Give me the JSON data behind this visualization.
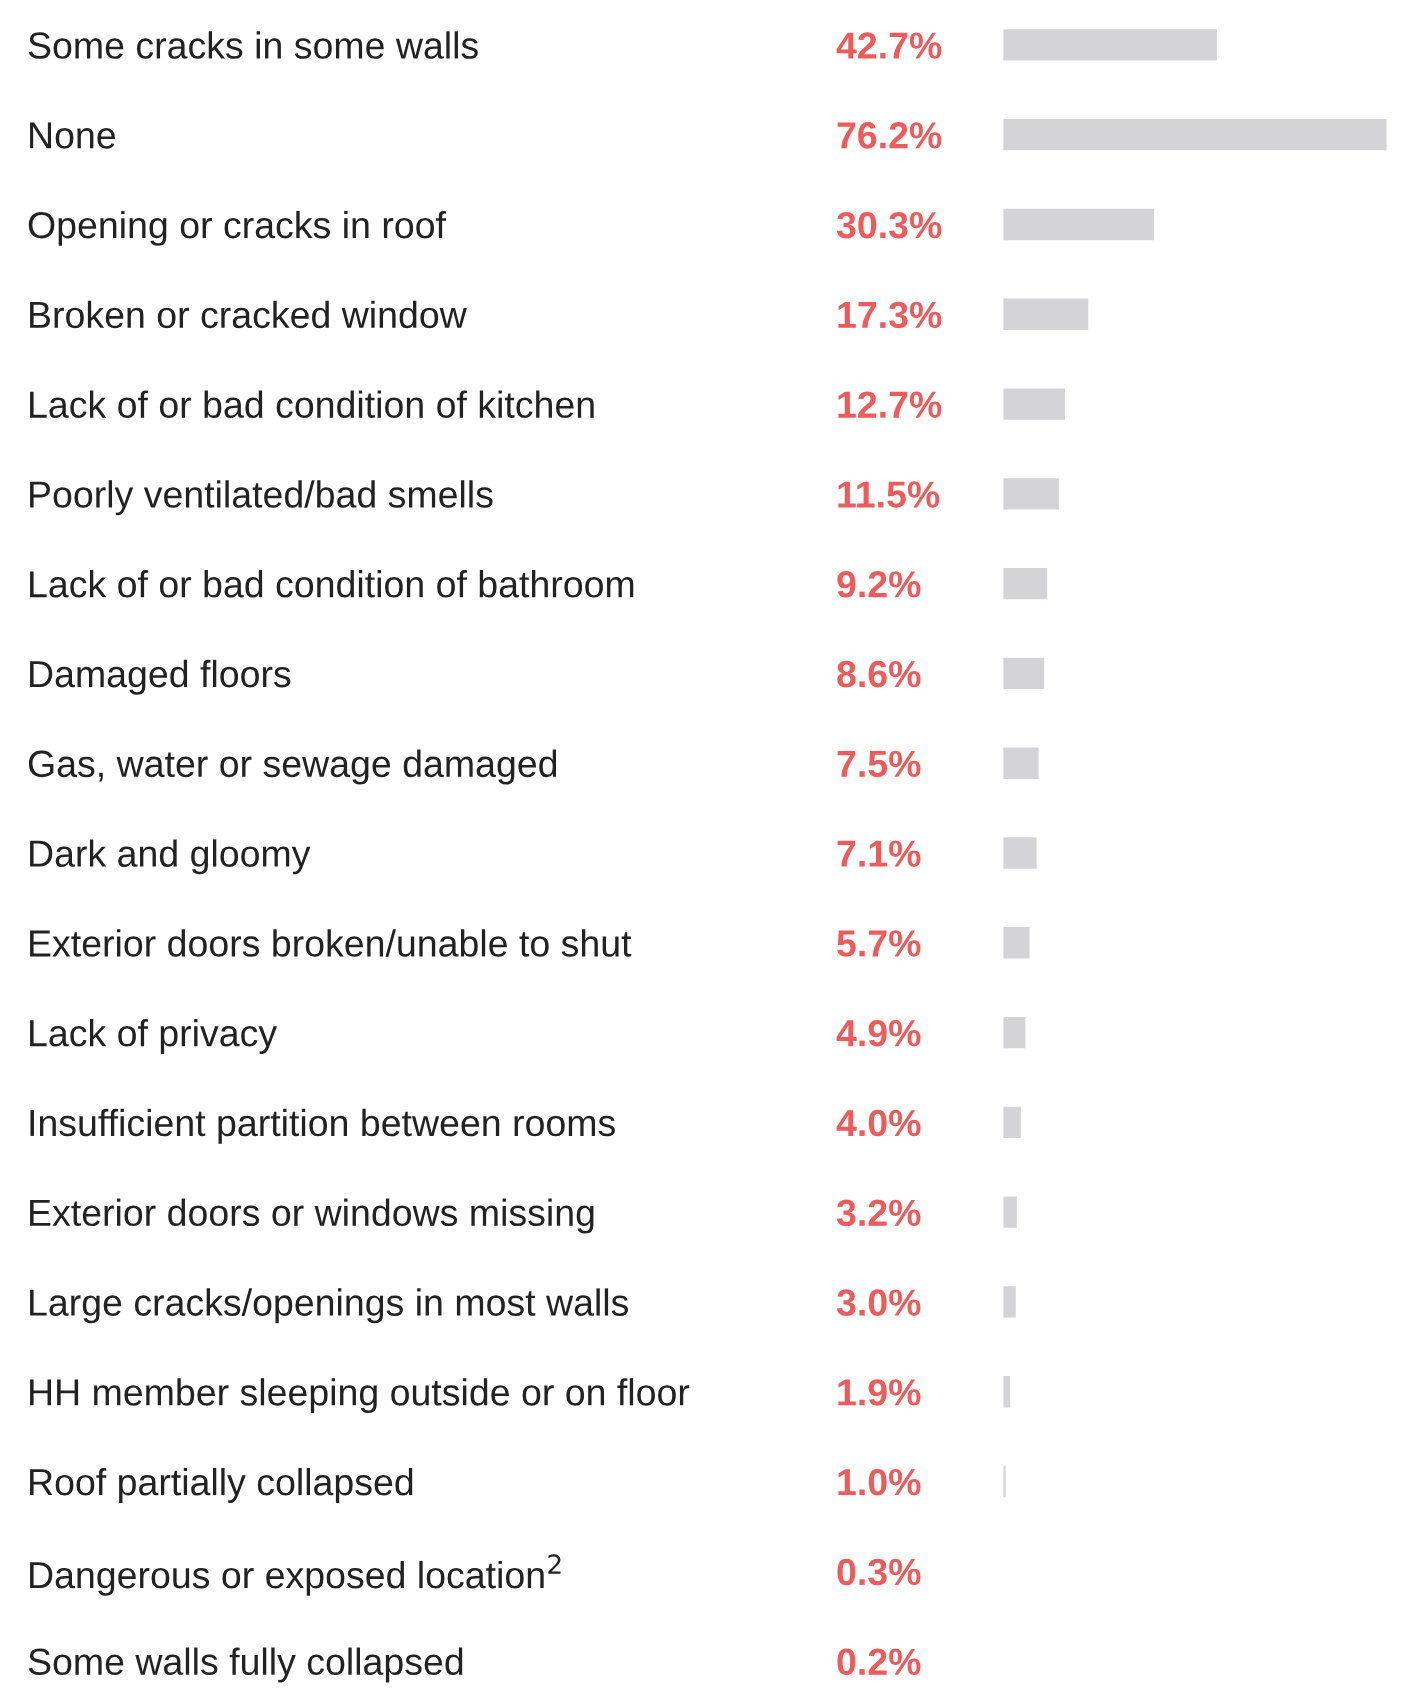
{
  "chart_data": {
    "type": "bar",
    "orientation": "horizontal",
    "categories": [
      "Some cracks in some walls",
      "None",
      "Opening or cracks in roof",
      "Broken or cracked window",
      "Lack of or bad condition of kitchen",
      "Poorly ventilated/bad smells",
      "Lack of or bad condition of bathroom",
      "Damaged floors",
      "Gas, water or sewage damaged",
      "Dark and gloomy",
      "Exterior doors broken/unable to shut",
      "Lack of privacy",
      "Insufficient partition between rooms",
      "Exterior doors or windows missing",
      "Large cracks/openings in most walls",
      "HH member sleeping outside or on floor",
      "Roof partially collapsed",
      "Dangerous or exposed location$^{2}$",
      "Some walls fully collapsed"
    ],
    "values": [
      42.7,
      76.2,
      30.3,
      17.3,
      12.7,
      11.5,
      9.2,
      8.6,
      7.5,
      7.1,
      5.7,
      4.9,
      4.0,
      3.2,
      3.0,
      1.9,
      1.0,
      0.3,
      0.2
    ],
    "value_labels": [
      "42.7%",
      "76.2%",
      "30.3%",
      "17.3%",
      "12.7%",
      "11.5%",
      "9.2%",
      "8.6%",
      "7.5%",
      "7.1%",
      "5.7%",
      "4.9%",
      "4.0%",
      "3.2%",
      "3.0%",
      "1.9%",
      "1.0%",
      "0.3%",
      "0.2%"
    ],
    "color": "#d4d4d6"
  }
}
